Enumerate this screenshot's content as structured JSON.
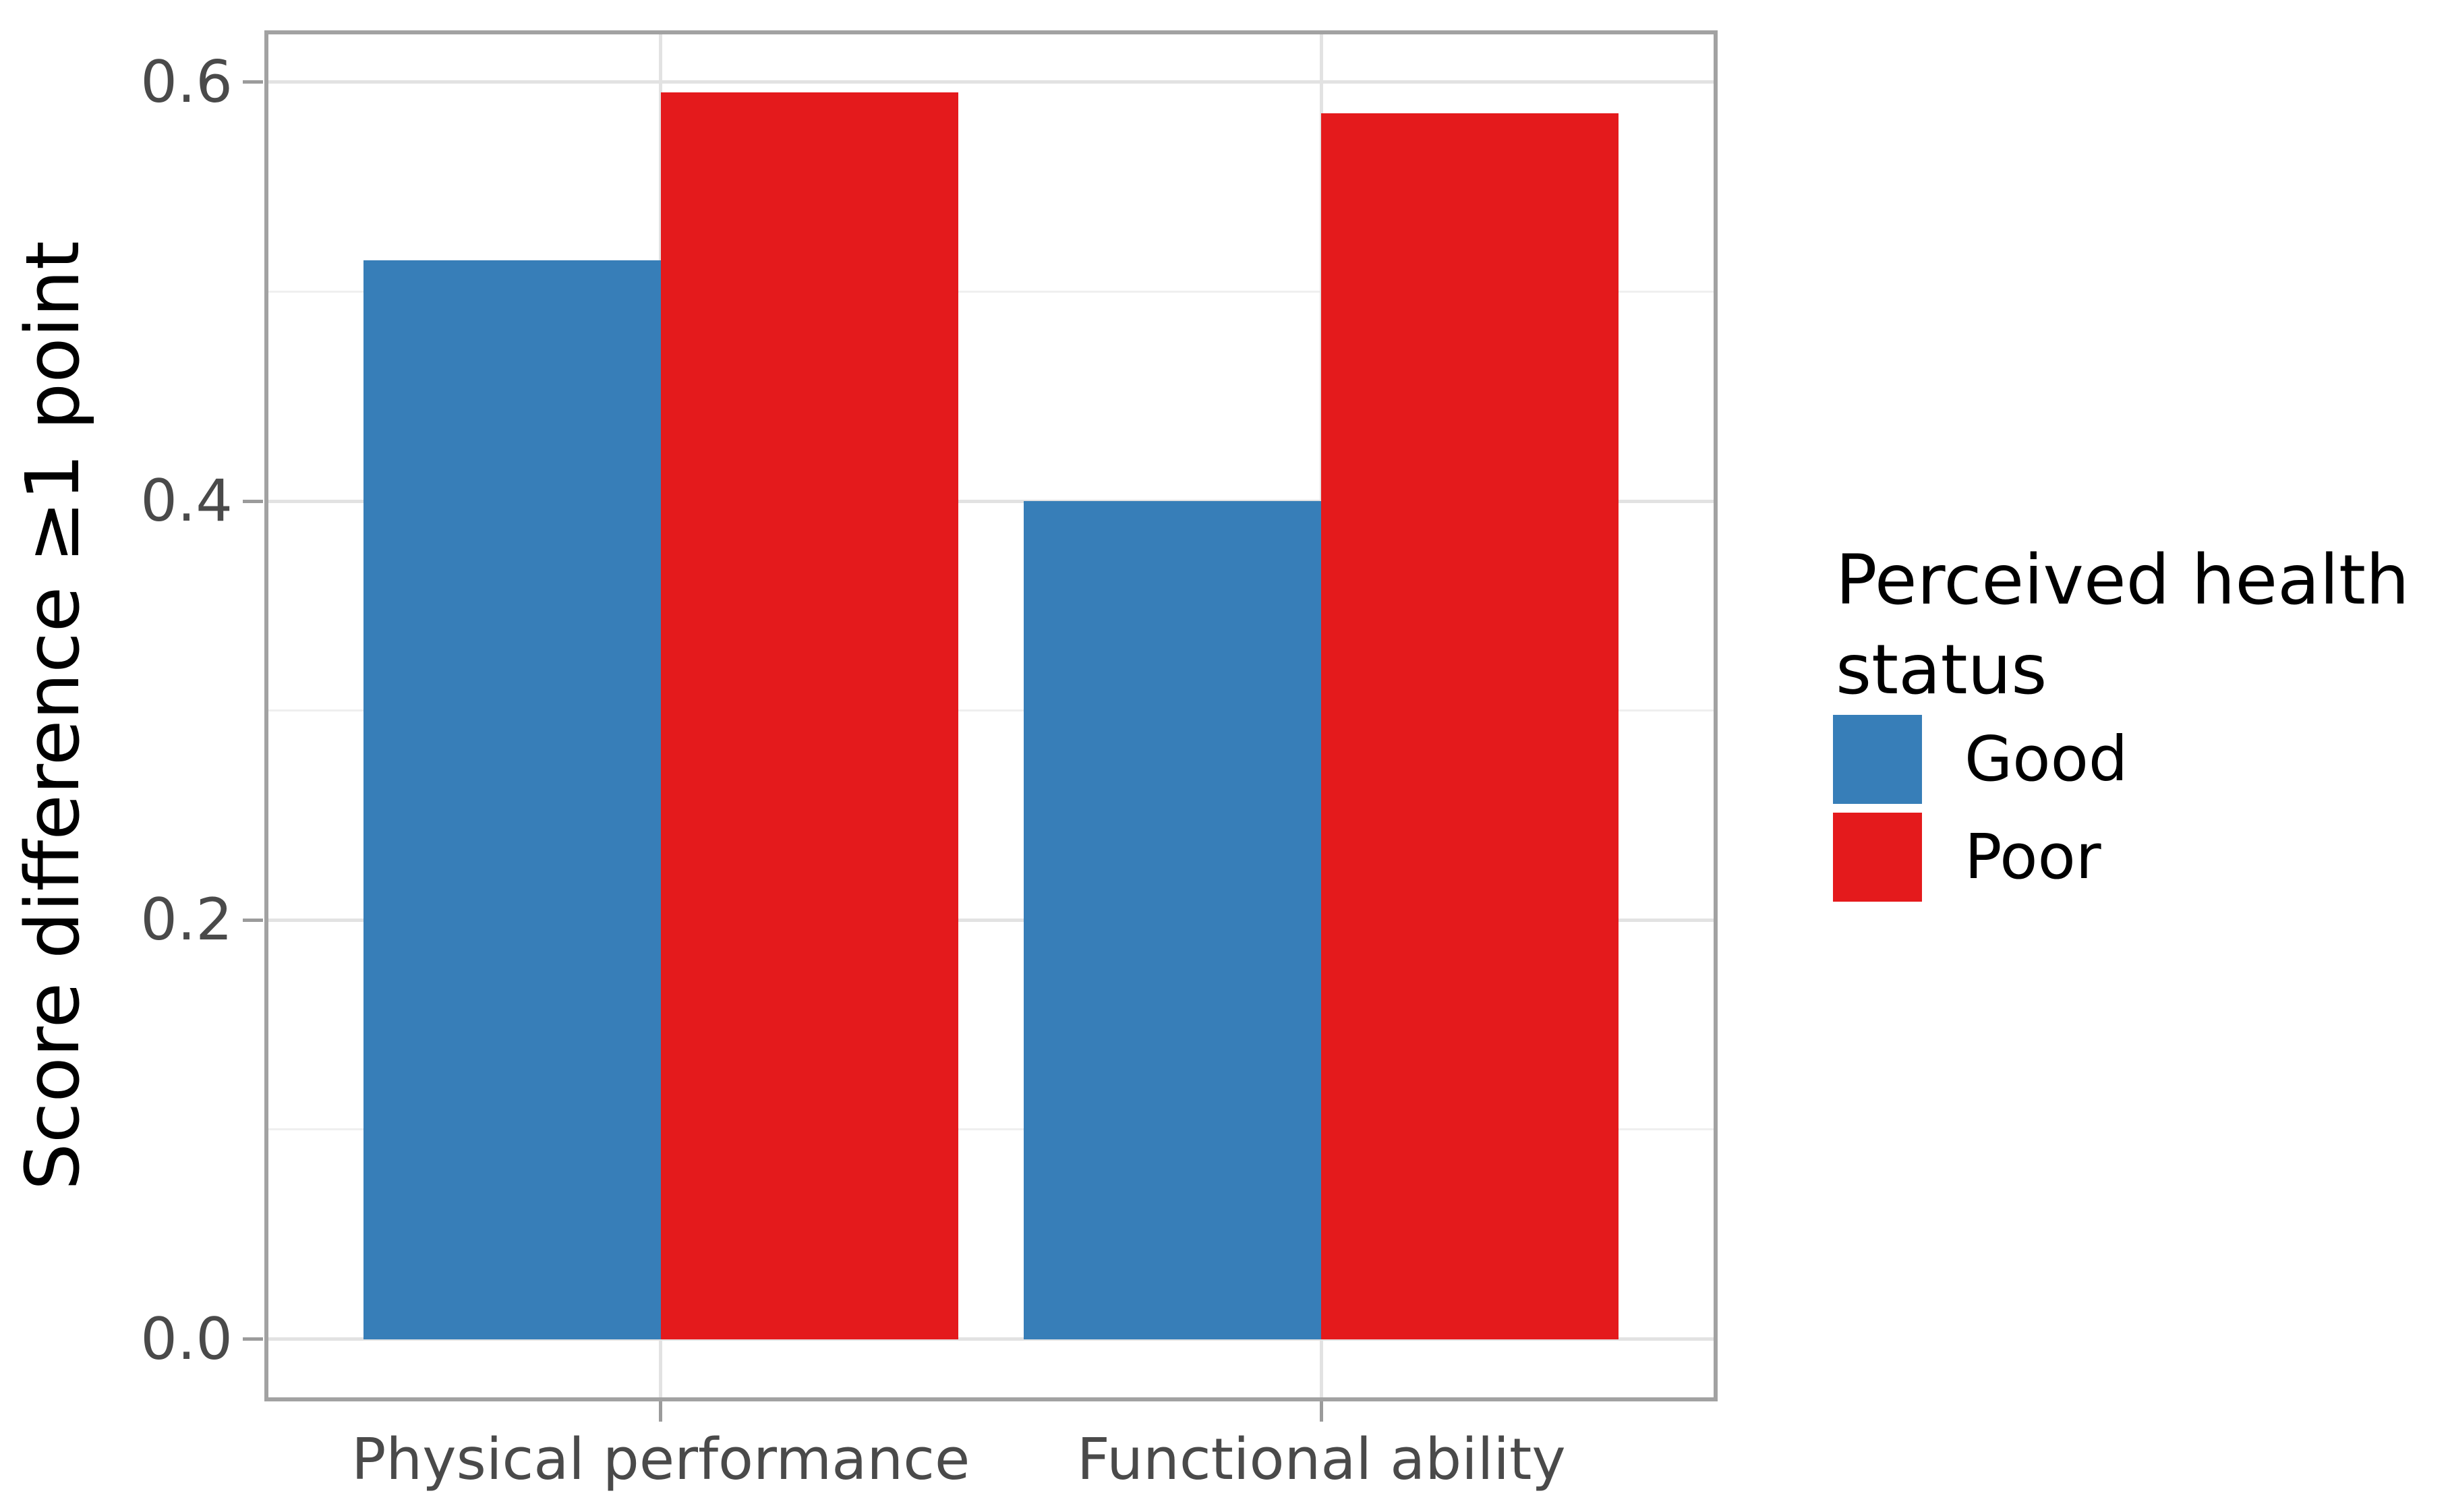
{
  "chart_data": {
    "type": "bar",
    "categories": [
      "Physical performance",
      "Functional ability"
    ],
    "series": [
      {
        "name": "Good",
        "color": "#377eb8",
        "values": [
          0.515,
          0.4
        ]
      },
      {
        "name": "Poor",
        "color": "#e41a1c",
        "values": [
          0.595,
          0.585
        ]
      }
    ],
    "title": "",
    "xlabel": "",
    "ylabel": "Score difference ≥1 point",
    "y_ticks": [
      "0.0",
      "0.2",
      "0.4",
      "0.6"
    ],
    "y_tick_values": [
      0.0,
      0.2,
      0.4,
      0.6
    ],
    "y_minor_tick_values": [
      0.1,
      0.3,
      0.5
    ],
    "ylim": [
      0,
      0.625
    ],
    "grid": "horizontal major+minor, vertical major at category centers",
    "legend_position": "right",
    "legend": {
      "title": "Perceived health status",
      "entries": [
        {
          "label": "Good",
          "color": "#377eb8"
        },
        {
          "label": "Poor",
          "color": "#e41a1c"
        }
      ]
    },
    "panel_border_color": "#a2a2a2",
    "major_grid_color": "#e2e2e2",
    "minor_grid_color": "#efefef",
    "tick_label_color": "#4a4a4a"
  }
}
